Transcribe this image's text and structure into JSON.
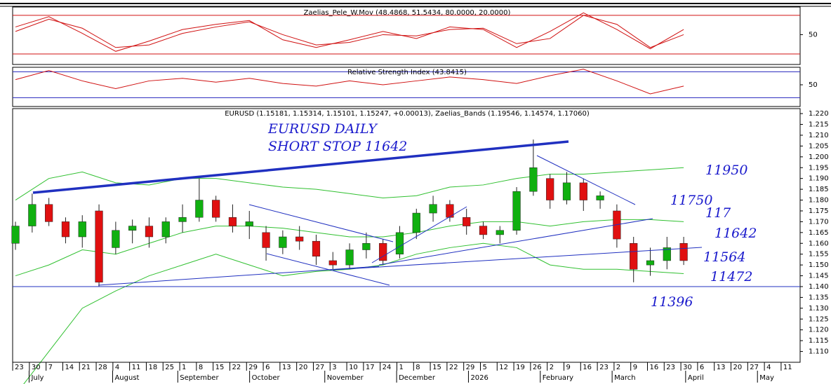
{
  "chart_data": [
    {
      "type": "line",
      "title": "Zaelias_Pele_W.Mov (48.4868, 51.5434, 80.0000, 20.0000)",
      "x": [
        0,
        2,
        4,
        6,
        8,
        10,
        12,
        14,
        16,
        18,
        20,
        22,
        24,
        26,
        28,
        30,
        32,
        34,
        36,
        38,
        40
      ],
      "series": [
        {
          "color": "#d01010",
          "values": [
            62,
            78,
            52,
            24,
            40,
            58,
            66,
            72,
            42,
            30,
            42,
            55,
            44,
            62,
            58,
            30,
            55,
            84,
            58,
            28,
            58
          ]
        },
        {
          "color": "#d01010",
          "values": [
            55,
            74,
            60,
            30,
            34,
            52,
            62,
            70,
            50,
            34,
            38,
            50,
            48,
            58,
            60,
            36,
            44,
            80,
            66,
            30,
            50
          ]
        }
      ],
      "levels": [
        80,
        20
      ],
      "level_color": "#d01010",
      "ylim": [
        3.6,
        93
      ],
      "yticks": [
        50
      ]
    },
    {
      "type": "line",
      "title": "Relative Strength Index (43.8415)",
      "x": [
        0,
        2,
        4,
        6,
        8,
        10,
        12,
        14,
        16,
        18,
        20,
        22,
        24,
        26,
        28,
        30,
        32,
        34,
        36,
        38,
        40
      ],
      "series": [
        {
          "color": "#d01010",
          "values": [
            58,
            72,
            56,
            44,
            56,
            60,
            54,
            60,
            52,
            48,
            56,
            50,
            56,
            62,
            58,
            52,
            64,
            74,
            56,
            36,
            48
          ]
        }
      ],
      "levels": [
        70,
        30
      ],
      "level_color": "#3030c0",
      "ylim": [
        16.5,
        77
      ],
      "yticks": [
        50
      ]
    },
    {
      "type": "candlestick",
      "title": "EURUSD (1.15181, 1.15314, 1.15101, 1.15247, +0.00013), Zaelias_Bands (1.19546, 1.14574, 1.17060)",
      "x": [
        0,
        1,
        2,
        3,
        4,
        5,
        6,
        7,
        8,
        9,
        10,
        11,
        12,
        13,
        14,
        15,
        16,
        17,
        18,
        19,
        20,
        21,
        22,
        23,
        24,
        25,
        26,
        27,
        28,
        29,
        30,
        31,
        32,
        33,
        34,
        35,
        36,
        37,
        38,
        39,
        40
      ],
      "open": [
        1.16,
        1.168,
        1.178,
        1.17,
        1.163,
        1.175,
        1.158,
        1.166,
        1.168,
        1.163,
        1.17,
        1.172,
        1.18,
        1.172,
        1.168,
        1.165,
        1.158,
        1.163,
        1.161,
        1.152,
        1.15,
        1.157,
        1.16,
        1.155,
        1.165,
        1.174,
        1.178,
        1.172,
        1.168,
        1.164,
        1.166,
        1.184,
        1.19,
        1.18,
        1.188,
        1.18,
        1.175,
        1.16,
        1.15,
        1.152,
        1.16
      ],
      "high": [
        1.17,
        1.183,
        1.181,
        1.172,
        1.173,
        1.178,
        1.17,
        1.171,
        1.172,
        1.172,
        1.178,
        1.19,
        1.182,
        1.178,
        1.175,
        1.168,
        1.166,
        1.168,
        1.164,
        1.156,
        1.16,
        1.165,
        1.162,
        1.168,
        1.176,
        1.182,
        1.18,
        1.176,
        1.17,
        1.168,
        1.186,
        1.208,
        1.192,
        1.193,
        1.19,
        1.184,
        1.178,
        1.163,
        1.158,
        1.163,
        1.163
      ],
      "low": [
        1.157,
        1.165,
        1.168,
        1.16,
        1.158,
        1.14,
        1.155,
        1.16,
        1.158,
        1.16,
        1.165,
        1.17,
        1.17,
        1.165,
        1.162,
        1.152,
        1.155,
        1.157,
        1.15,
        1.148,
        1.148,
        1.153,
        1.15,
        1.153,
        1.162,
        1.17,
        1.17,
        1.164,
        1.162,
        1.16,
        1.164,
        1.182,
        1.176,
        1.178,
        1.175,
        1.176,
        1.158,
        1.142,
        1.145,
        1.148,
        1.15
      ],
      "close": [
        1.168,
        1.178,
        1.17,
        1.163,
        1.17,
        1.142,
        1.166,
        1.168,
        1.163,
        1.17,
        1.172,
        1.18,
        1.172,
        1.168,
        1.17,
        1.158,
        1.163,
        1.161,
        1.154,
        1.15,
        1.157,
        1.16,
        1.152,
        1.165,
        1.174,
        1.178,
        1.172,
        1.168,
        1.164,
        1.166,
        1.184,
        1.195,
        1.18,
        1.188,
        1.18,
        1.182,
        1.162,
        1.148,
        1.152,
        1.158,
        1.152
      ],
      "up_color": "#10b010",
      "down_color": "#e01010",
      "bands": {
        "x": [
          0,
          2,
          4,
          6,
          8,
          10,
          12,
          14,
          16,
          18,
          20,
          22,
          24,
          26,
          28,
          30,
          32,
          34,
          36,
          38,
          40
        ],
        "color": "#30c030",
        "series": [
          {
            "values": [
              1.18,
              1.19,
              1.193,
              1.188,
              1.187,
              1.19,
              1.19,
              1.188,
              1.186,
              1.185,
              1.183,
              1.181,
              1.182,
              1.186,
              1.187,
              1.19,
              1.192,
              1.192,
              1.193,
              1.194,
              1.195
            ]
          },
          {
            "values": [
              1.145,
              1.15,
              1.157,
              1.155,
              1.16,
              1.165,
              1.168,
              1.168,
              1.167,
              1.165,
              1.163,
              1.163,
              1.165,
              1.168,
              1.17,
              1.17,
              1.168,
              1.17,
              1.171,
              1.171,
              1.17
            ]
          },
          {
            "values": [
              1.09,
              1.11,
              1.13,
              1.138,
              1.145,
              1.15,
              1.155,
              1.15,
              1.145,
              1.147,
              1.148,
              1.15,
              1.155,
              1.158,
              1.16,
              1.158,
              1.15,
              1.148,
              1.148,
              1.147,
              1.146
            ]
          }
        ]
      },
      "annotations": [
        "EURUSD DAILY",
        "SHORT STOP 11642",
        "11950",
        "11750",
        "117",
        "11642",
        "11564",
        "11472",
        "11396"
      ],
      "xlim": [
        -0.17,
        46.97
      ],
      "xticks": [
        {
          "value": 0,
          "label": "23"
        },
        {
          "value": 1,
          "label": "30"
        },
        {
          "value": 2,
          "label": "7"
        },
        {
          "value": 3,
          "label": "14"
        },
        {
          "value": 4,
          "label": "21"
        },
        {
          "value": 5,
          "label": "28"
        },
        {
          "value": 6,
          "label": "4"
        },
        {
          "value": 7,
          "label": "11"
        },
        {
          "value": 8,
          "label": "18"
        },
        {
          "value": 9,
          "label": "25"
        },
        {
          "value": 10,
          "label": "1"
        },
        {
          "value": 11,
          "label": "8"
        },
        {
          "value": 12,
          "label": "15"
        },
        {
          "value": 13,
          "label": "22"
        },
        {
          "value": 14,
          "label": "29"
        },
        {
          "value": 15,
          "label": "6"
        },
        {
          "value": 16,
          "label": "13"
        },
        {
          "value": 17,
          "label": "20"
        },
        {
          "value": 18,
          "label": "27"
        },
        {
          "value": 19,
          "label": "3"
        },
        {
          "value": 20,
          "label": "10"
        },
        {
          "value": 21,
          "label": "17"
        },
        {
          "value": 22,
          "label": "24"
        },
        {
          "value": 23,
          "label": "1"
        },
        {
          "value": 24,
          "label": "8"
        },
        {
          "value": 25,
          "label": "15"
        },
        {
          "value": 26,
          "label": "22"
        },
        {
          "value": 27,
          "label": "29"
        },
        {
          "value": 28,
          "label": "5"
        },
        {
          "value": 29,
          "label": "12"
        },
        {
          "value": 30,
          "label": "19"
        },
        {
          "value": 31,
          "label": "26"
        },
        {
          "value": 32,
          "label": "2"
        },
        {
          "value": 33,
          "label": "9"
        },
        {
          "value": 34,
          "label": "16"
        },
        {
          "value": 35,
          "label": "23"
        },
        {
          "value": 36,
          "label": "2"
        },
        {
          "value": 37,
          "label": "9"
        },
        {
          "value": 38,
          "label": "16"
        },
        {
          "value": 39,
          "label": "23"
        },
        {
          "value": 40,
          "label": "30"
        },
        {
          "value": 41,
          "label": "6"
        },
        {
          "value": 42,
          "label": "13"
        },
        {
          "value": 43,
          "label": "20"
        },
        {
          "value": 44,
          "label": "27"
        },
        {
          "value": 45,
          "label": "4"
        },
        {
          "value": 46,
          "label": "11"
        }
      ],
      "month_ticks": [
        {
          "value": 0.9,
          "label": "July"
        },
        {
          "value": 5.9,
          "label": "August"
        },
        {
          "value": 9.8,
          "label": "September"
        },
        {
          "value": 14.1,
          "label": "October"
        },
        {
          "value": 18.6,
          "label": "November"
        },
        {
          "value": 22.9,
          "label": "December"
        },
        {
          "value": 27.2,
          "label": "2026"
        },
        {
          "value": 31.5,
          "label": "February"
        },
        {
          "value": 35.8,
          "label": "March"
        },
        {
          "value": 40.2,
          "label": "April"
        },
        {
          "value": 44.5,
          "label": "May"
        }
      ],
      "ylim": [
        1.105,
        1.2223
      ],
      "yticks": [
        {
          "value": 1.11,
          "label": "1.110"
        },
        {
          "value": 1.115,
          "label": "1.115"
        },
        {
          "value": 1.12,
          "label": "1.120"
        },
        {
          "value": 1.125,
          "label": "1.125"
        },
        {
          "value": 1.13,
          "label": "1.130"
        },
        {
          "value": 1.135,
          "label": "1.135"
        },
        {
          "value": 1.14,
          "label": "1.140"
        },
        {
          "value": 1.145,
          "label": "1.145"
        },
        {
          "value": 1.15,
          "label": "1.150"
        },
        {
          "value": 1.155,
          "label": "1.155"
        },
        {
          "value": 1.16,
          "label": "1.160"
        },
        {
          "value": 1.165,
          "label": "1.165"
        },
        {
          "value": 1.17,
          "label": "1.170"
        },
        {
          "value": 1.175,
          "label": "1.175"
        },
        {
          "value": 1.18,
          "label": "1.180"
        },
        {
          "value": 1.185,
          "label": "1.185"
        },
        {
          "value": 1.19,
          "label": "1.190"
        },
        {
          "value": 1.195,
          "label": "1.195"
        },
        {
          "value": 1.2,
          "label": "1.200"
        },
        {
          "value": 1.205,
          "label": "1.205"
        },
        {
          "value": 1.21,
          "label": "1.210"
        },
        {
          "value": 1.215,
          "label": "1.215"
        },
        {
          "value": 1.22,
          "label": "1.220"
        }
      ]
    }
  ]
}
